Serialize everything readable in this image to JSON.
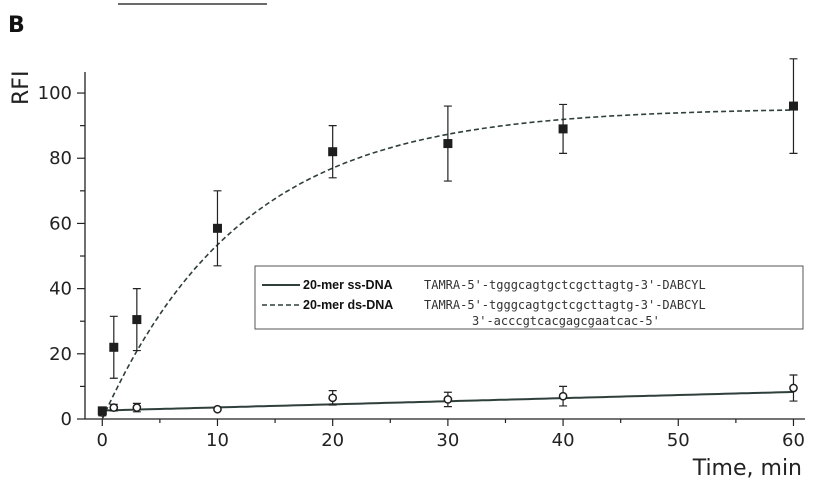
{
  "panel_label": "B",
  "chart_data": {
    "type": "scatter",
    "xlabel": "Time, min",
    "ylabel": "RFI",
    "xlim": [
      -1.5,
      61
    ],
    "ylim": [
      0,
      104
    ],
    "xticks": [
      0,
      10,
      20,
      30,
      40,
      50,
      60
    ],
    "yticks": [
      0,
      20,
      40,
      60,
      80,
      100
    ],
    "grid": false,
    "legend_position": "center-right",
    "series": [
      {
        "name": "20-mer ss-DNA",
        "sequence_lines": [
          "TAMRA-5'-tgggcagtgctcgcttagtg-3'-DABCYL"
        ],
        "marker": "open-circle",
        "line": "solid",
        "color": "#2f3f3c",
        "points": [
          {
            "x": 0,
            "y": 2,
            "err": 1
          },
          {
            "x": 1,
            "y": 3.5,
            "err": 1
          },
          {
            "x": 3,
            "y": 3.5,
            "err": 1.3
          },
          {
            "x": 10,
            "y": 3,
            "err": 0
          },
          {
            "x": 20,
            "y": 6.5,
            "err": 2.2
          },
          {
            "x": 30,
            "y": 6,
            "err": 2.2
          },
          {
            "x": 40,
            "y": 7,
            "err": 3
          },
          {
            "x": 60,
            "y": 9.5,
            "err": 4
          }
        ],
        "fit": {
          "model": "linear",
          "intercept": 2.6,
          "slope": 0.095
        }
      },
      {
        "name": "20-mer ds-DNA",
        "sequence_lines": [
          "TAMRA-5'-tgggcagtgctcgcttagtg-3'-DABCYL",
          "3'-acccgtcacgagcgaatcac-5'"
        ],
        "marker": "filled-square",
        "line": "dashed",
        "color": "#2f3f3c",
        "points": [
          {
            "x": 0,
            "y": 2.5,
            "err": 1
          },
          {
            "x": 1,
            "y": 22,
            "err": 9.5
          },
          {
            "x": 3,
            "y": 30.5,
            "err": 9.5
          },
          {
            "x": 10,
            "y": 58.5,
            "err": 11.5
          },
          {
            "x": 20,
            "y": 82,
            "err": 8
          },
          {
            "x": 30,
            "y": 84.5,
            "err": 11.5
          },
          {
            "x": 40,
            "y": 89,
            "err": 7.5
          },
          {
            "x": 60,
            "y": 96,
            "err": 14.5
          }
        ],
        "fit": {
          "model": "exponential-rise",
          "plateau": 95.5,
          "rate_per_min": 0.082
        }
      }
    ]
  }
}
